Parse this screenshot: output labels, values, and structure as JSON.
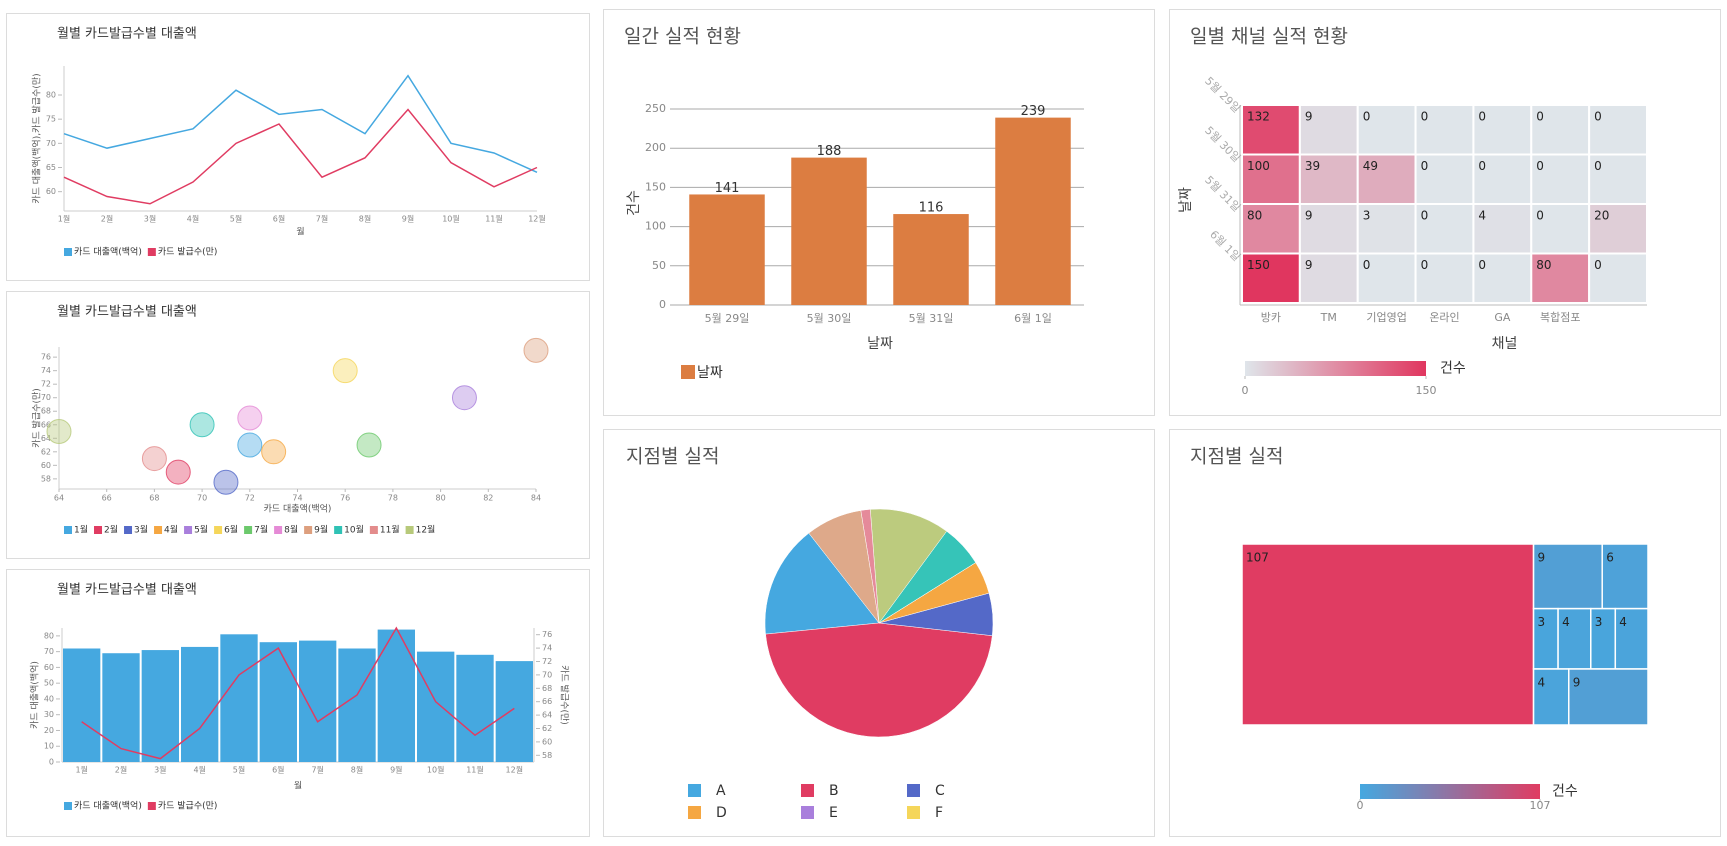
{
  "chart_data": [
    {
      "type": "line",
      "title": "월별 카드발급수별 대출액",
      "x_label": "월",
      "y_label": "카드 대출액(백억),카드 발급수(만)",
      "categories": [
        "1월",
        "2월",
        "3월",
        "4월",
        "5월",
        "6월",
        "7월",
        "8월",
        "9월",
        "10월",
        "11월",
        "12월"
      ],
      "series": [
        {
          "name": "카드 대출액(백억)",
          "color": "#45a8e0",
          "values": [
            72,
            69,
            71,
            73,
            81,
            76,
            77,
            72,
            84,
            70,
            68,
            64
          ]
        },
        {
          "name": "카드 발급수(만)",
          "color": "#e03c62",
          "values": [
            63,
            59,
            57.5,
            62,
            70,
            74,
            63,
            67,
            77,
            66,
            61,
            65
          ]
        }
      ],
      "ylim": [
        56,
        86
      ],
      "yticks": [
        60,
        65,
        70,
        75,
        80
      ]
    },
    {
      "type": "scatter",
      "title": "월별 카드발급수별 대출액",
      "x_label": "카드 대출액(백억)",
      "y_label": "카드 발급수(만)",
      "series": [
        {
          "name": "1월",
          "color": "#45a8e0",
          "x": [
            72
          ],
          "values": [
            63
          ]
        },
        {
          "name": "2월",
          "color": "#e03c62",
          "x": [
            69
          ],
          "values": [
            59
          ]
        },
        {
          "name": "3월",
          "color": "#5469c8",
          "x": [
            71
          ],
          "values": [
            57.5
          ]
        },
        {
          "name": "4월",
          "color": "#f5a742",
          "x": [
            73
          ],
          "values": [
            62
          ]
        },
        {
          "name": "5월",
          "color": "#a97fdc",
          "x": [
            81
          ],
          "values": [
            70
          ]
        },
        {
          "name": "6월",
          "color": "#f5d65a",
          "x": [
            76
          ],
          "values": [
            74
          ]
        },
        {
          "name": "7월",
          "color": "#6cc96c",
          "x": [
            77
          ],
          "values": [
            63
          ]
        },
        {
          "name": "8월",
          "color": "#e58ad6",
          "x": [
            72
          ],
          "values": [
            67
          ]
        },
        {
          "name": "9월",
          "color": "#dd9f7e",
          "x": [
            84
          ],
          "values": [
            77
          ]
        },
        {
          "name": "10월",
          "color": "#2fc2b5",
          "x": [
            70
          ],
          "values": [
            66
          ]
        },
        {
          "name": "11월",
          "color": "#e38c8c",
          "x": [
            68
          ],
          "values": [
            61
          ]
        },
        {
          "name": "12월",
          "color": "#b7c97a",
          "x": [
            64
          ],
          "values": [
            65
          ]
        }
      ],
      "xlim": [
        64,
        84
      ],
      "xticks": [
        64,
        66,
        68,
        70,
        72,
        74,
        76,
        78,
        80,
        82,
        84
      ],
      "ylim": [
        56.5,
        77.5
      ],
      "yticks": [
        58,
        60,
        62,
        64,
        66,
        68,
        70,
        72,
        74,
        76
      ]
    },
    {
      "type": "combo",
      "title": "월별 카드발급수별 대출액",
      "x_label": "월",
      "y_label": "카드 대출액(백억)",
      "y2_label": "카드 발급수(만)",
      "categories": [
        "1월",
        "2월",
        "3월",
        "4월",
        "5월",
        "6월",
        "7월",
        "8월",
        "9월",
        "10월",
        "11월",
        "12월"
      ],
      "series": [
        {
          "name": "카드 대출액(백억)",
          "color": "#45a8e0",
          "type": "bar",
          "values": [
            72,
            69,
            71,
            73,
            81,
            76,
            77,
            72,
            84,
            70,
            68,
            64
          ]
        },
        {
          "name": "카드 발급수(만)",
          "color": "#e03c62",
          "type": "line",
          "axis": "y2",
          "values": [
            63,
            59,
            57.5,
            62,
            70,
            74,
            63,
            67,
            77,
            66,
            61,
            65
          ]
        }
      ],
      "ylim": [
        0,
        85
      ],
      "yticks": [
        0,
        10,
        20,
        30,
        40,
        50,
        60,
        70,
        80
      ],
      "y2lim": [
        57,
        77
      ],
      "y2ticks": [
        58,
        60,
        62,
        64,
        66,
        68,
        70,
        72,
        74,
        76
      ]
    },
    {
      "type": "bar",
      "title": "일간 실적 현황",
      "x_label": "날짜",
      "y_label": "건수",
      "categories": [
        "5월 29일",
        "5월 30일",
        "5월 31일",
        "6월 1일"
      ],
      "series": [
        {
          "name": "날짜",
          "color": "#dc7d41",
          "values": [
            141,
            188,
            116,
            239
          ]
        }
      ],
      "ylim": [
        0,
        250
      ],
      "yticks": [
        0,
        50,
        100,
        150,
        200,
        250
      ],
      "grid": true
    },
    {
      "type": "heatmap",
      "title": "일별 채널 실적 현황",
      "x_label": "채널",
      "y_label": "날짜",
      "x_categories": [
        "방카",
        "TM",
        "기업영업",
        "온라인",
        "GA",
        "복합점포",
        null
      ],
      "y_categories": [
        "5월 29일",
        "5월 30일",
        "5월 31일",
        "6월 1일"
      ],
      "values": [
        [
          132,
          9,
          0,
          0,
          0,
          0,
          0
        ],
        [
          100,
          39,
          49,
          0,
          0,
          0,
          0
        ],
        [
          80,
          9,
          3,
          0,
          4,
          0,
          20
        ],
        [
          150,
          9,
          0,
          0,
          0,
          80,
          0
        ]
      ],
      "clim": [
        0,
        150
      ],
      "cticks": [
        0,
        150
      ],
      "colorscale": [
        "#dfe5ea",
        "#e0365f"
      ],
      "colorbar_label": "건수"
    },
    {
      "type": "pie",
      "title": "지점별 실적",
      "categories": [
        "A",
        "B",
        "C",
        "D",
        "E",
        "F",
        null,
        null,
        null,
        null
      ],
      "values": [
        24,
        70,
        9,
        7,
        0,
        0,
        9,
        17,
        2,
        12
      ],
      "colors": [
        "#45a8e0",
        "#e03c62",
        "#5469c8",
        "#f5a742",
        "#a97fdc",
        "#f5d65a",
        "#36c4b8",
        "#bccb7e",
        "#e58a9a",
        "#dea98a"
      ]
    },
    {
      "type": "treemap",
      "title": "지점별 실적",
      "values": [
        107,
        9,
        6,
        3,
        4,
        3,
        4,
        4,
        9
      ],
      "clim": [
        0,
        107
      ],
      "cticks": [
        0,
        107
      ],
      "colorscale": [
        "#45a8e0",
        "#e03c62"
      ],
      "colorbar_label": "건수"
    }
  ]
}
